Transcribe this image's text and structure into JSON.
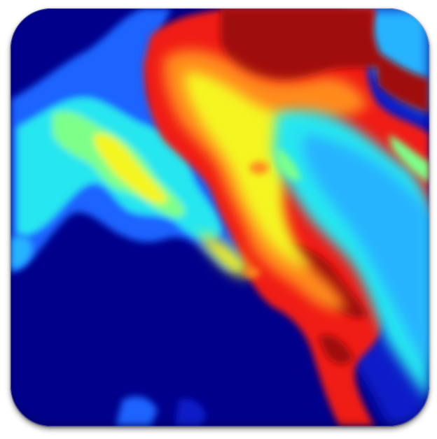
{
  "image": {
    "subject": "colormap-field-tile",
    "colors": {
      "deep_blue": "#00008b",
      "blue": "#0a1ec8",
      "mid_blue": "#1e64ff",
      "light_blue": "#28b4ff",
      "cyan": "#28e6f0",
      "green": "#7dff8a",
      "yellow": "#f5f522",
      "orange": "#ff8a1e",
      "red": "#f01e14",
      "dark_red": "#a00a0a"
    }
  }
}
